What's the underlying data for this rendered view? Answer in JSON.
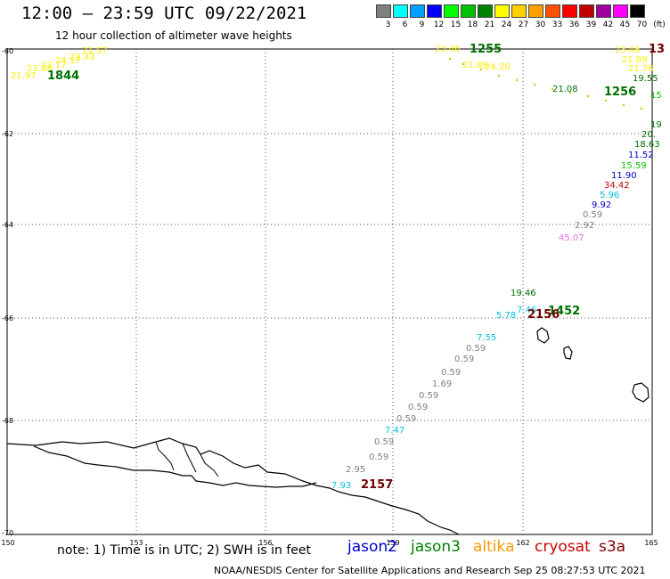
{
  "header": {
    "title": "12:00 – 23:59 UTC 09/22/2021",
    "subtitle": "12 hour collection of altimeter wave heights"
  },
  "colorbar": {
    "unit_label": "(ft)",
    "entries": [
      {
        "label": "3",
        "color": "#808080"
      },
      {
        "label": "6",
        "color": "#00ffff"
      },
      {
        "label": "9",
        "color": "#00a0ff"
      },
      {
        "label": "12",
        "color": "#0000ff"
      },
      {
        "label": "15",
        "color": "#00ff00"
      },
      {
        "label": "18",
        "color": "#00c000"
      },
      {
        "label": "21",
        "color": "#008000"
      },
      {
        "label": "24",
        "color": "#ffff00"
      },
      {
        "label": "27",
        "color": "#ffd000"
      },
      {
        "label": "30",
        "color": "#ffa000"
      },
      {
        "label": "33",
        "color": "#ff5000"
      },
      {
        "label": "36",
        "color": "#ff0000"
      },
      {
        "label": "39",
        "color": "#c00000"
      },
      {
        "label": "42",
        "color": "#a000a0"
      },
      {
        "label": "45",
        "color": "#ff00ff"
      },
      {
        "label": "70",
        "color": "#000000"
      }
    ]
  },
  "axes": {
    "lat_labels": [
      "-60",
      "-62",
      "-64",
      "-66",
      "-68",
      "-70"
    ],
    "lon_labels": [
      "150",
      "153",
      "156",
      "159",
      "162",
      "165"
    ]
  },
  "annotations": [
    {
      "text": "21.57",
      "color": "#ffee00"
    },
    {
      "text": "23.43",
      "color": "#ffee00"
    },
    {
      "text": "24.17",
      "color": "#ffee00"
    },
    {
      "text": "22.17",
      "color": "#ffee00"
    },
    {
      "text": "23.88",
      "color": "#ffee00"
    },
    {
      "text": "21.97",
      "color": "#ffee00"
    },
    {
      "text": "1844",
      "color": "#007000"
    },
    {
      "text": "23.46",
      "color": "#ffee00"
    },
    {
      "text": "1255",
      "color": "#007000"
    },
    {
      "text": "21.89",
      "color": "#ffee00"
    },
    {
      "text": "24.20",
      "color": "#ffee00"
    },
    {
      "text": "21.08",
      "color": "#007000"
    },
    {
      "text": "1256",
      "color": "#007000"
    },
    {
      "text": "23.46",
      "color": "#ffee00"
    },
    {
      "text": "13",
      "color": "#700000"
    },
    {
      "text": "21.89",
      "color": "#ffee00"
    },
    {
      "text": "21.76",
      "color": "#ffee00"
    },
    {
      "text": "19.55",
      "color": "#007000"
    },
    {
      "text": "15",
      "color": "#00c000"
    },
    {
      "text": "19",
      "color": "#007000"
    },
    {
      "text": "20.",
      "color": "#007000"
    },
    {
      "text": "18.63",
      "color": "#007000"
    },
    {
      "text": "11.52",
      "color": "#0000c0"
    },
    {
      "text": "15.59",
      "color": "#00c000"
    },
    {
      "text": "11.90",
      "color": "#0000c0"
    },
    {
      "text": "34.42",
      "color": "#c00000"
    },
    {
      "text": "5.96",
      "color": "#00c0e0"
    },
    {
      "text": "9.92",
      "color": "#0000c0"
    },
    {
      "text": "0.59",
      "color": "#808080"
    },
    {
      "text": "2.92",
      "color": "#808080"
    },
    {
      "text": "45.07",
      "color": "#e070e0"
    },
    {
      "text": "19.46",
      "color": "#007000"
    },
    {
      "text": "1452",
      "color": "#007000"
    },
    {
      "text": "5.78",
      "color": "#00c0e0"
    },
    {
      "text": "7.46",
      "color": "#00c0e0"
    },
    {
      "text": "2156",
      "color": "#700000"
    },
    {
      "text": "7.55",
      "color": "#00c0e0"
    },
    {
      "text": "0.59",
      "color": "#808080"
    },
    {
      "text": "0.59",
      "color": "#808080"
    },
    {
      "text": "0.59",
      "color": "#808080"
    },
    {
      "text": "1.69",
      "color": "#808080"
    },
    {
      "text": "0.59",
      "color": "#808080"
    },
    {
      "text": "0.59",
      "color": "#808080"
    },
    {
      "text": "0.59",
      "color": "#808080"
    },
    {
      "text": "7.47",
      "color": "#00c0e0"
    },
    {
      "text": "0.59",
      "color": "#808080"
    },
    {
      "text": "0.59",
      "color": "#808080"
    },
    {
      "text": "2.95",
      "color": "#808080"
    },
    {
      "text": "7.93",
      "color": "#00c0e0"
    },
    {
      "text": "2157",
      "color": "#700000"
    }
  ],
  "footer": {
    "note": "note: 1) Time is in UTC; 2) SWH is in feet",
    "satellites": [
      {
        "name": "jason2",
        "color": "#0000cc"
      },
      {
        "name": "jason3",
        "color": "#008000"
      },
      {
        "name": "altika",
        "color": "#ff9900"
      },
      {
        "name": "cryosat",
        "color": "#cc0000"
      },
      {
        "name": "s3a",
        "color": "#800000"
      }
    ],
    "credit": "NOAA/NESDIS Center for Satellite Applications and Research   Sep 25 08:27:53 UTC 2021"
  }
}
